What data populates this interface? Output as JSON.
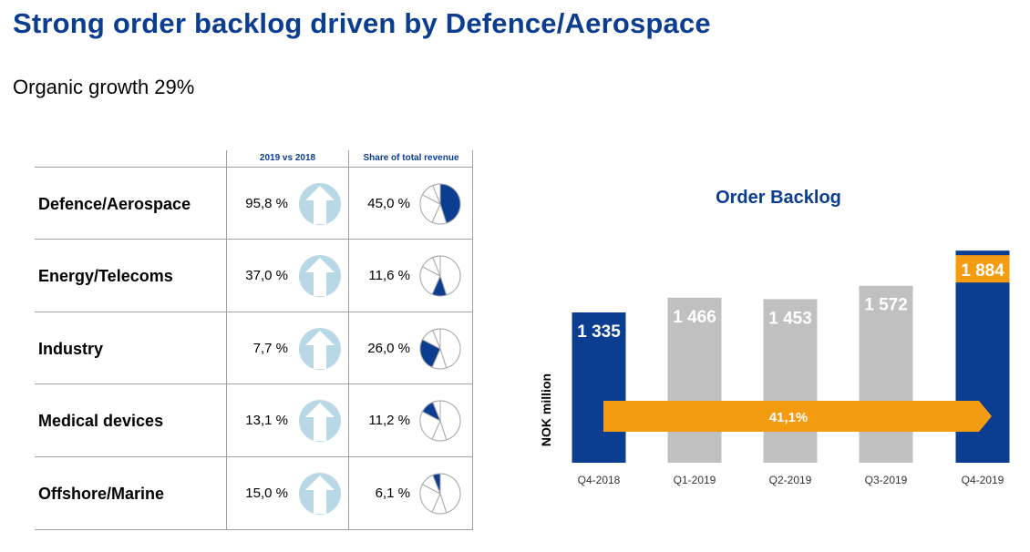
{
  "header": {
    "title": "Strong order backlog driven by Defence/Aerospace",
    "subtitle": "Organic growth 29%"
  },
  "table": {
    "col_growth": "2019 vs 2018",
    "col_share": "Share of total revenue",
    "rows": [
      {
        "segment": "Defence/Aerospace",
        "growth": "95,8 %",
        "share": "45,0 %",
        "share_value": 45.0
      },
      {
        "segment": "Energy/Telecoms",
        "growth": "37,0 %",
        "share": "11,6 %",
        "share_value": 11.6
      },
      {
        "segment": "Industry",
        "growth": "7,7 %",
        "share": "26,0 %",
        "share_value": 26.0
      },
      {
        "segment": "Medical devices",
        "growth": "13,1 %",
        "share": "11,2 %",
        "share_value": 11.2
      },
      {
        "segment": "Offshore/Marine",
        "growth": "15,0 %",
        "share": "6,1 %",
        "share_value": 6.1
      }
    ]
  },
  "colors": {
    "navy": "#0b3d91",
    "gray_bar": "#c0c0c0",
    "orange": "#f39c12",
    "arrow_light_blue": "#b8d8e6"
  },
  "chart_data": {
    "type": "bar",
    "title": "Order Backlog",
    "ylabel": "NOK million",
    "categories": [
      "Q4-2018",
      "Q1-2019",
      "Q2-2019",
      "Q3-2019",
      "Q4-2019"
    ],
    "values": [
      1335,
      1466,
      1453,
      1572,
      1884
    ],
    "value_labels": [
      "1 335",
      "1 466",
      "1 453",
      "1 572",
      "1 884"
    ],
    "bar_colors": [
      "#0b3d91",
      "#c0c0c0",
      "#c0c0c0",
      "#c0c0c0",
      "#0b3d91"
    ],
    "ylim": [
      0,
      1950
    ],
    "annotation": {
      "label": "41,1%",
      "from": "Q4-2018",
      "to": "Q4-2019",
      "color": "#f39c12"
    },
    "grid": false
  }
}
